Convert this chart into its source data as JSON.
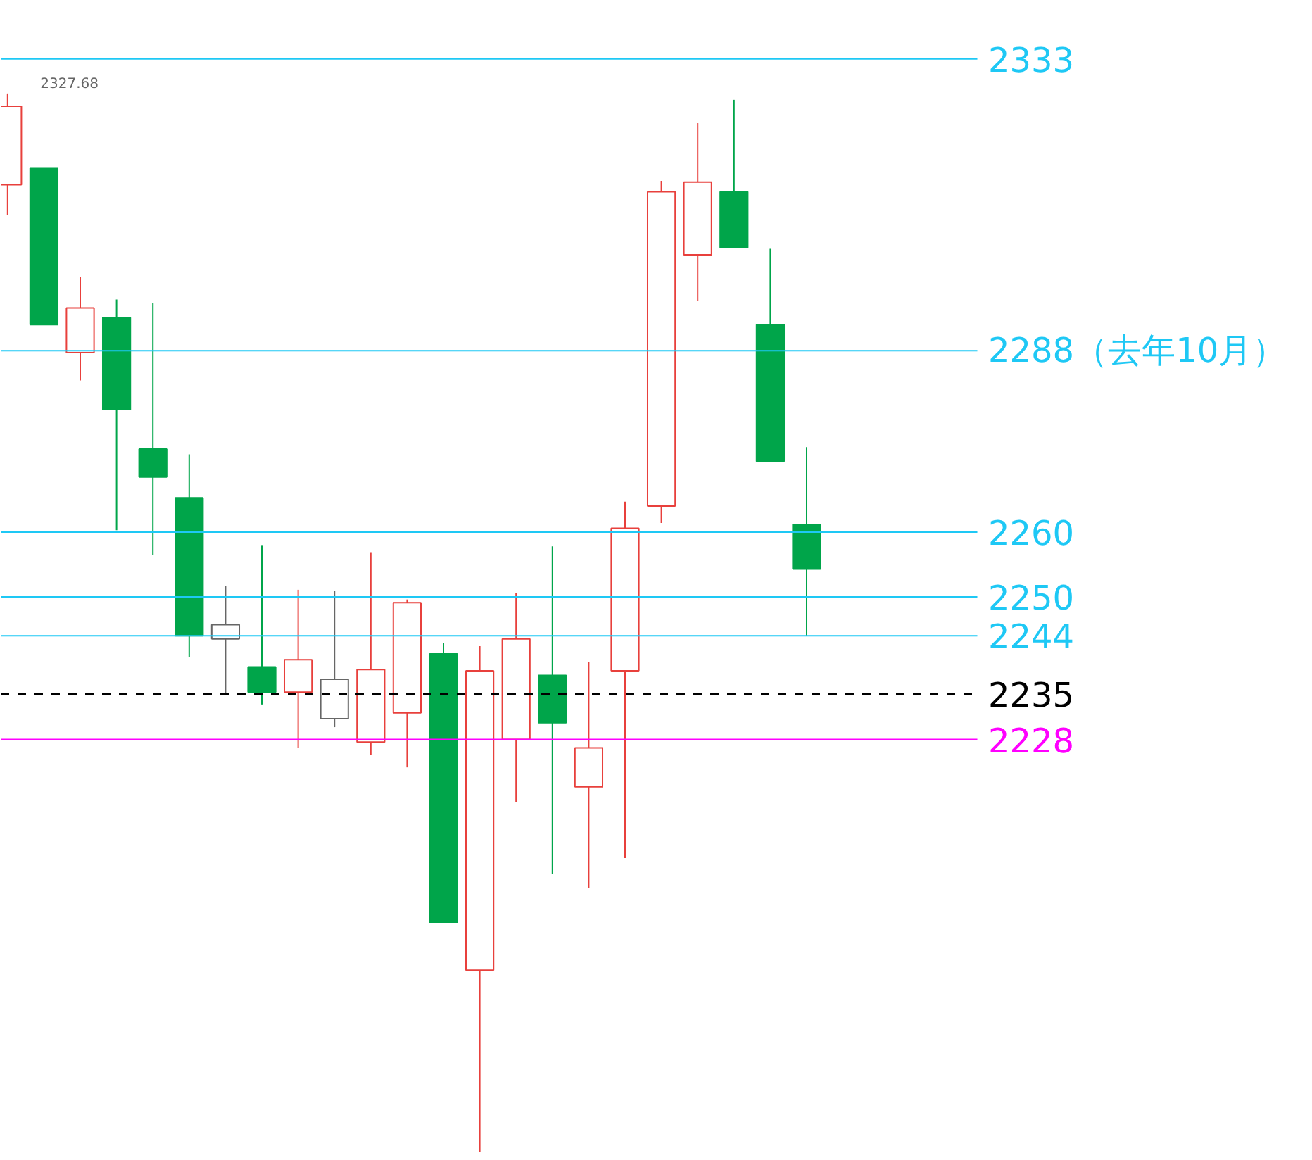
{
  "chart_data": {
    "type": "candlestick",
    "categories": [
      null,
      null,
      null,
      null,
      null,
      null,
      null,
      null,
      null,
      null,
      null,
      null,
      null,
      null,
      null,
      null,
      null,
      null,
      null,
      null,
      null,
      null,
      null
    ],
    "ohlc": [
      [
        2313.6,
        2327.68,
        2308.9,
        2325.7
      ],
      [
        2316.2,
        2316.2,
        2292.0,
        2292.0
      ],
      [
        2287.7,
        2299.4,
        2283.4,
        2294.6
      ],
      [
        2293.1,
        2295.9,
        2260.3,
        2278.9
      ],
      [
        2272.8,
        2295.3,
        2256.5,
        2268.5
      ],
      [
        2265.3,
        2272.0,
        2240.7,
        2244.0
      ],
      [
        2243.5,
        2251.7,
        2234.9,
        2245.7
      ],
      [
        2239.2,
        2258.0,
        2233.4,
        2235.3
      ],
      [
        2235.3,
        2251.1,
        2226.7,
        2240.3
      ],
      [
        2231.2,
        2250.9,
        2229.9,
        2237.3
      ],
      [
        2227.6,
        2256.9,
        2225.6,
        2238.8
      ],
      [
        2232.1,
        2249.6,
        2223.7,
        2249.1
      ],
      [
        2241.2,
        2242.9,
        2199.8,
        2199.8
      ],
      [
        2192.4,
        2242.4,
        2164.4,
        2238.6
      ],
      [
        2228.0,
        2250.6,
        2218.3,
        2243.5
      ],
      [
        2237.9,
        2257.8,
        2207.3,
        2230.6
      ],
      [
        2220.7,
        2239.9,
        2205.1,
        2226.7
      ],
      [
        2238.6,
        2264.7,
        2209.7,
        2260.6
      ],
      [
        2264.0,
        2314.2,
        2261.4,
        2312.5
      ],
      [
        2302.8,
        2323.1,
        2295.7,
        2314.0
      ],
      [
        2312.5,
        2326.7,
        2303.9,
        2303.9
      ],
      [
        2292.0,
        2303.7,
        2270.9,
        2270.9
      ],
      [
        2261.2,
        2273.1,
        2244.0,
        2254.3
      ]
    ],
    "colors": [
      "#e8403c",
      "#00a54a",
      "#e8403c",
      "#00a54a",
      "#00a54a",
      "#00a54a",
      "#666666",
      "#00a54a",
      "#e8403c",
      "#666666",
      "#e8403c",
      "#e8403c",
      "#00a54a",
      "#e8403c",
      "#e8403c",
      "#00a54a",
      "#e8403c",
      "#e8403c",
      "#e8403c",
      "#e8403c",
      "#00a54a",
      "#00a54a",
      "#00a54a"
    ],
    "ylim": [
      2163,
      2342
    ],
    "tick_labels": false,
    "annotations": [
      "2327.68"
    ],
    "ref_lines": [
      {
        "axis": "y",
        "value": 2333,
        "label": "2333",
        "color": "#1ec8f5"
      },
      {
        "axis": "y",
        "value": 2288,
        "label": "2288（去年10月）",
        "color": "#1ec8f5"
      },
      {
        "axis": "y",
        "value": 2260,
        "label": "2260",
        "color": "#1ec8f5"
      },
      {
        "axis": "y",
        "value": 2250,
        "label": "2250",
        "color": "#1ec8f5"
      },
      {
        "axis": "y",
        "value": 2244,
        "label": "2244",
        "color": "#1ec8f5"
      },
      {
        "axis": "y",
        "value": 2235,
        "label": "2235",
        "color": "#000000",
        "line_style": "dashed"
      },
      {
        "axis": "y",
        "value": 2228,
        "label": "2228",
        "color": "#ff00ff"
      }
    ]
  }
}
